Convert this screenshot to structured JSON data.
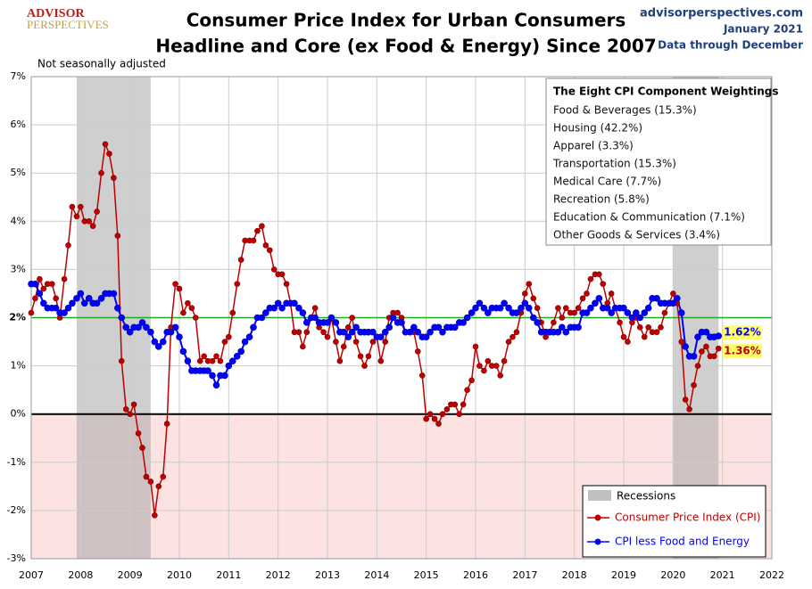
{
  "chart_data": {
    "type": "line",
    "title": "Consumer Price Index for Urban Consumers",
    "subtitle": "Headline and Core (ex Food & Energy) Since 2007",
    "logo": {
      "line1": "ADVISOR",
      "line2": "PERSPECTIVES"
    },
    "source": "advisorperspectives.com",
    "date": "January 2021",
    "data_note": "Data through December",
    "annotation": "Not seasonally adjusted",
    "weightings": {
      "title": "The Eight CPI Component Weightings",
      "items": [
        "Food & Beverages (15.3%)",
        "Housing (42.2%)",
        "Apparel (3.3%)",
        "Transportation (15.3%)",
        "Medical Care (7.7%)",
        "Recreation (5.8%)",
        "Education & Communication (7.1%)",
        "Other Goods & Services (3.4%)"
      ]
    },
    "recession_label": "Recessions",
    "recessions": [
      [
        2007.92,
        2009.42
      ],
      [
        2020.0,
        2020.92
      ]
    ],
    "ref_line": 2,
    "ref_color": "#22aa22",
    "xlim": [
      2007,
      2022
    ],
    "xticks": [
      2007,
      2008,
      2009,
      2010,
      2011,
      2012,
      2013,
      2014,
      2015,
      2016,
      2017,
      2018,
      2019,
      2020,
      2021,
      2022
    ],
    "ylim": [
      -3,
      7
    ],
    "yticks": [
      {
        "value": -3,
        "label": "-3%"
      },
      {
        "value": -2,
        "label": "-2%"
      },
      {
        "value": -1,
        "label": "-1%"
      },
      {
        "value": 0,
        "label": "0%"
      },
      {
        "value": 1,
        "label": "1%"
      },
      {
        "value": 2,
        "label": "2%"
      },
      {
        "value": 3,
        "label": "3%"
      },
      {
        "value": 4,
        "label": "4%"
      },
      {
        "value": 5,
        "label": "5%"
      },
      {
        "value": 6,
        "label": "6%"
      },
      {
        "value": 7,
        "label": "7%"
      }
    ],
    "grid": true,
    "x": [
      2007,
      2007.08,
      2007.17,
      2007.25,
      2007.33,
      2007.42,
      2007.5,
      2007.58,
      2007.67,
      2007.75,
      2007.83,
      2007.92,
      2008,
      2008.08,
      2008.17,
      2008.25,
      2008.33,
      2008.42,
      2008.5,
      2008.58,
      2008.67,
      2008.75,
      2008.83,
      2008.92,
      2009,
      2009.08,
      2009.17,
      2009.25,
      2009.33,
      2009.42,
      2009.5,
      2009.58,
      2009.67,
      2009.75,
      2009.83,
      2009.92,
      2010,
      2010.08,
      2010.17,
      2010.25,
      2010.33,
      2010.42,
      2010.5,
      2010.58,
      2010.67,
      2010.75,
      2010.83,
      2010.92,
      2011,
      2011.08,
      2011.17,
      2011.25,
      2011.33,
      2011.42,
      2011.5,
      2011.58,
      2011.67,
      2011.75,
      2011.83,
      2011.92,
      2012,
      2012.08,
      2012.17,
      2012.25,
      2012.33,
      2012.42,
      2012.5,
      2012.58,
      2012.67,
      2012.75,
      2012.83,
      2012.92,
      2013,
      2013.08,
      2013.17,
      2013.25,
      2013.33,
      2013.42,
      2013.5,
      2013.58,
      2013.67,
      2013.75,
      2013.83,
      2013.92,
      2014,
      2014.08,
      2014.17,
      2014.25,
      2014.33,
      2014.42,
      2014.5,
      2014.58,
      2014.67,
      2014.75,
      2014.83,
      2014.92,
      2015,
      2015.08,
      2015.17,
      2015.25,
      2015.33,
      2015.42,
      2015.5,
      2015.58,
      2015.67,
      2015.75,
      2015.83,
      2015.92,
      2016,
      2016.08,
      2016.17,
      2016.25,
      2016.33,
      2016.42,
      2016.5,
      2016.58,
      2016.67,
      2016.75,
      2016.83,
      2016.92,
      2017,
      2017.08,
      2017.17,
      2017.25,
      2017.33,
      2017.42,
      2017.5,
      2017.58,
      2017.67,
      2017.75,
      2017.83,
      2017.92,
      2018,
      2018.08,
      2018.17,
      2018.25,
      2018.33,
      2018.42,
      2018.5,
      2018.58,
      2018.67,
      2018.75,
      2018.83,
      2018.92,
      2019,
      2019.08,
      2019.17,
      2019.25,
      2019.33,
      2019.42,
      2019.5,
      2019.58,
      2019.67,
      2019.75,
      2019.83,
      2019.92,
      2020,
      2020.08,
      2020.17,
      2020.25,
      2020.33,
      2020.42,
      2020.5,
      2020.58,
      2020.67,
      2020.75,
      2020.83,
      2020.92
    ],
    "series": [
      {
        "name": "Consumer Price Index (CPI)",
        "color": "#c00000",
        "last_label": "1.36%",
        "values": [
          2.1,
          2.4,
          2.8,
          2.6,
          2.7,
          2.7,
          2.4,
          2.0,
          2.8,
          3.5,
          4.3,
          4.1,
          4.3,
          4.0,
          4.0,
          3.9,
          4.2,
          5.0,
          5.6,
          5.4,
          4.9,
          3.7,
          1.1,
          0.1,
          0.0,
          0.2,
          -0.4,
          -0.7,
          -1.3,
          -1.4,
          -2.1,
          -1.5,
          -1.3,
          -0.2,
          1.8,
          2.7,
          2.6,
          2.1,
          2.3,
          2.2,
          2.0,
          1.1,
          1.2,
          1.1,
          1.1,
          1.2,
          1.1,
          1.5,
          1.6,
          2.1,
          2.7,
          3.2,
          3.6,
          3.6,
          3.6,
          3.8,
          3.9,
          3.5,
          3.4,
          3.0,
          2.9,
          2.9,
          2.7,
          2.3,
          1.7,
          1.7,
          1.4,
          1.7,
          2.0,
          2.2,
          1.8,
          1.7,
          1.6,
          2.0,
          1.5,
          1.1,
          1.4,
          1.8,
          2.0,
          1.5,
          1.2,
          1.0,
          1.2,
          1.5,
          1.6,
          1.1,
          1.5,
          2.0,
          2.1,
          2.1,
          2.0,
          1.7,
          1.7,
          1.7,
          1.3,
          0.8,
          -0.1,
          0.0,
          -0.1,
          -0.2,
          0.0,
          0.1,
          0.2,
          0.2,
          0.0,
          0.2,
          0.5,
          0.7,
          1.4,
          1.0,
          0.9,
          1.1,
          1.0,
          1.0,
          0.8,
          1.1,
          1.5,
          1.6,
          1.7,
          2.1,
          2.5,
          2.7,
          2.4,
          2.2,
          1.9,
          1.6,
          1.7,
          1.9,
          2.2,
          2.0,
          2.2,
          2.1,
          2.1,
          2.2,
          2.4,
          2.5,
          2.8,
          2.9,
          2.9,
          2.7,
          2.3,
          2.5,
          2.2,
          1.9,
          1.6,
          1.5,
          1.9,
          2.0,
          1.8,
          1.6,
          1.8,
          1.7,
          1.7,
          1.8,
          2.1,
          2.3,
          2.5,
          2.3,
          1.5,
          0.3,
          0.1,
          0.6,
          1.0,
          1.3,
          1.4,
          1.2,
          1.2,
          1.36
        ]
      },
      {
        "name": "CPI less Food and Energy",
        "color": "#0000ff",
        "last_label": "1.62%",
        "values": [
          2.7,
          2.7,
          2.5,
          2.3,
          2.2,
          2.2,
          2.2,
          2.1,
          2.1,
          2.2,
          2.3,
          2.4,
          2.5,
          2.3,
          2.4,
          2.3,
          2.3,
          2.4,
          2.5,
          2.5,
          2.5,
          2.2,
          2.0,
          1.8,
          1.7,
          1.8,
          1.8,
          1.9,
          1.8,
          1.7,
          1.5,
          1.4,
          1.5,
          1.7,
          1.7,
          1.8,
          1.6,
          1.3,
          1.1,
          0.9,
          0.9,
          0.9,
          0.9,
          0.9,
          0.8,
          0.6,
          0.8,
          0.8,
          1.0,
          1.1,
          1.2,
          1.3,
          1.5,
          1.6,
          1.8,
          2.0,
          2.0,
          2.1,
          2.2,
          2.2,
          2.3,
          2.2,
          2.3,
          2.3,
          2.3,
          2.2,
          2.1,
          1.9,
          2.0,
          2.0,
          1.9,
          1.9,
          1.9,
          2.0,
          1.9,
          1.7,
          1.7,
          1.6,
          1.7,
          1.8,
          1.7,
          1.7,
          1.7,
          1.7,
          1.6,
          1.6,
          1.7,
          1.8,
          2.0,
          1.9,
          1.9,
          1.7,
          1.7,
          1.8,
          1.7,
          1.6,
          1.6,
          1.7,
          1.8,
          1.8,
          1.7,
          1.8,
          1.8,
          1.8,
          1.9,
          1.9,
          2.0,
          2.1,
          2.2,
          2.3,
          2.2,
          2.1,
          2.2,
          2.2,
          2.2,
          2.3,
          2.2,
          2.1,
          2.1,
          2.2,
          2.3,
          2.2,
          2.0,
          1.9,
          1.7,
          1.7,
          1.7,
          1.7,
          1.7,
          1.8,
          1.7,
          1.8,
          1.8,
          1.8,
          2.1,
          2.1,
          2.2,
          2.3,
          2.4,
          2.2,
          2.2,
          2.1,
          2.2,
          2.2,
          2.2,
          2.1,
          2.0,
          2.1,
          2.0,
          2.1,
          2.2,
          2.4,
          2.4,
          2.3,
          2.3,
          2.3,
          2.3,
          2.4,
          2.1,
          1.4,
          1.2,
          1.2,
          1.6,
          1.7,
          1.7,
          1.6,
          1.6,
          1.62
        ]
      }
    ]
  }
}
